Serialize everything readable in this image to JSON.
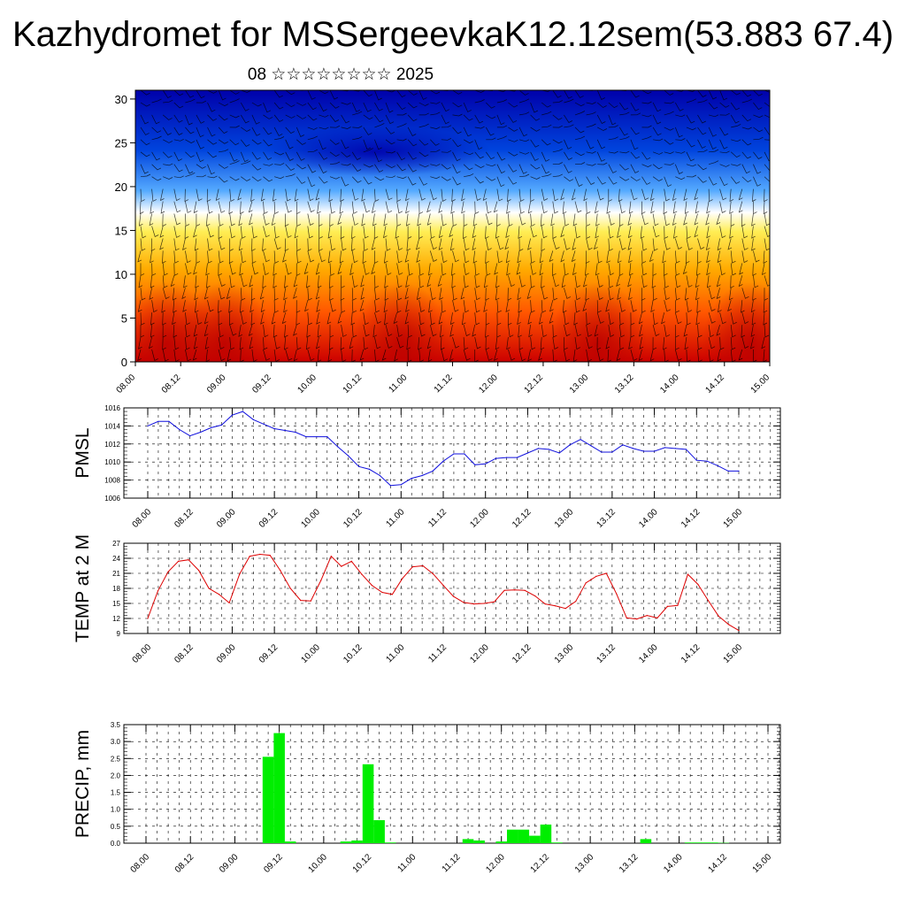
{
  "header": {
    "title": "Kazhydromet for MSSergeevkaK12.12sem(53.883 67.4)",
    "subtitle": "08 ☆☆☆☆☆☆☆☆ 2025"
  },
  "colors": {
    "pmsl_line": "#1010dd",
    "temp_line": "#dd0000",
    "precip_bar": "#00ee00",
    "wind_barb": "#000000"
  },
  "chart_data": [
    {
      "type": "heatmap",
      "name": "cross-section",
      "x_ticks": [
        "08.00",
        "08.12",
        "09.00",
        "09.12",
        "10.00",
        "10.12",
        "11.00",
        "11.12",
        "12.00",
        "12.12",
        "13.00",
        "13.12",
        "14.00",
        "14.12",
        "15.00"
      ],
      "y_ticks": [
        "0",
        "5",
        "10",
        "15",
        "20",
        "25",
        "30"
      ],
      "ylim": [
        0,
        31
      ],
      "colormap": [
        "#cc0000",
        "#ff5500",
        "#ffaa00",
        "#ffee55",
        "#ffffff",
        "#55aaff",
        "#0044dd",
        "#0000aa"
      ],
      "grid": false,
      "overlay": "wind barbs"
    },
    {
      "type": "line",
      "name": "pmsl",
      "ylabel": "PMSL",
      "x_ticks": [
        "08.00",
        "08.12",
        "09.00",
        "09.12",
        "10.00",
        "10.12",
        "11.00",
        "11.12",
        "12.00",
        "12.12",
        "13.00",
        "13.12",
        "14.00",
        "14.12",
        "15.00"
      ],
      "y_ticks": [
        "1006",
        "1008",
        "1010",
        "1012",
        "1014",
        "1016"
      ],
      "ylim": [
        1006,
        1016
      ],
      "grid": true,
      "values": [
        1014.0,
        1014.5,
        1014.5,
        1013.6,
        1012.9,
        1013.3,
        1013.8,
        1014.1,
        1015.2,
        1015.6,
        1014.7,
        1014.2,
        1013.7,
        1013.5,
        1013.3,
        1012.8,
        1012.8,
        1012.8,
        1011.7,
        1010.7,
        1009.5,
        1009.2,
        1008.5,
        1007.4,
        1007.5,
        1008.2,
        1008.5,
        1009.0,
        1010.1,
        1010.9,
        1010.9,
        1009.7,
        1009.8,
        1010.4,
        1010.5,
        1010.5,
        1011.0,
        1011.5,
        1011.4,
        1011.0,
        1011.9,
        1012.5,
        1011.8,
        1011.1,
        1011.1,
        1011.9,
        1011.5,
        1011.2,
        1011.2,
        1011.6,
        1011.5,
        1011.4,
        1010.2,
        1010.1,
        1009.6,
        1009.0,
        1009.0
      ]
    },
    {
      "type": "line",
      "name": "temp",
      "ylabel": "TEMP at 2 M",
      "x_ticks": [
        "08.00",
        "08.12",
        "09.00",
        "09.12",
        "10.00",
        "10.12",
        "11.00",
        "11.12",
        "12.00",
        "12.12",
        "13.00",
        "13.12",
        "14.00",
        "14.12",
        "15.00"
      ],
      "y_ticks": [
        "9",
        "12",
        "15",
        "18",
        "21",
        "24",
        "27"
      ],
      "ylim": [
        9,
        27
      ],
      "grid": true,
      "values": [
        12.0,
        17.5,
        21.3,
        23.4,
        23.7,
        21.6,
        18.0,
        16.8,
        15.1,
        20.8,
        24.4,
        24.8,
        24.6,
        21.6,
        18.0,
        15.6,
        15.5,
        19.6,
        24.4,
        22.4,
        23.4,
        20.8,
        18.6,
        17.2,
        16.8,
        20.0,
        22.3,
        22.5,
        20.9,
        18.6,
        16.4,
        15.2,
        14.9,
        15.0,
        15.3,
        17.6,
        17.7,
        17.6,
        16.5,
        14.9,
        14.5,
        14.0,
        15.4,
        19.1,
        20.4,
        21.0,
        16.9,
        12.1,
        11.9,
        12.6,
        12.1,
        14.4,
        14.6,
        20.8,
        18.8,
        15.6,
        12.5,
        10.8,
        9.6
      ],
      "values_tail_note": ""
    },
    {
      "type": "bar",
      "name": "precip",
      "ylabel": "PRECIP, mm",
      "x_ticks": [
        "08.00",
        "08.12",
        "09.00",
        "09.12",
        "10.00",
        "10.12",
        "11.00",
        "11.12",
        "12.00",
        "12.12",
        "13.00",
        "13.12",
        "14.00",
        "14.12",
        "15.00"
      ],
      "y_ticks": [
        "0.0",
        "0.5",
        "1.0",
        "1.5",
        "2.0",
        "2.5",
        "3.0",
        "3.5"
      ],
      "ylim": [
        0,
        3.5
      ],
      "grid": true,
      "hours": [
        33,
        36,
        39,
        54,
        57,
        60,
        63,
        66,
        87,
        90,
        96,
        99,
        102,
        105,
        108,
        111,
        135,
        147,
        150,
        153,
        156
      ],
      "values": [
        2.55,
        3.25,
        0.05,
        0.05,
        0.08,
        2.33,
        0.68,
        0.02,
        0.12,
        0.08,
        0.05,
        0.4,
        0.4,
        0.22,
        0.55,
        0.02,
        0.12,
        0.02,
        0.02,
        0.02,
        0.01
      ]
    }
  ]
}
